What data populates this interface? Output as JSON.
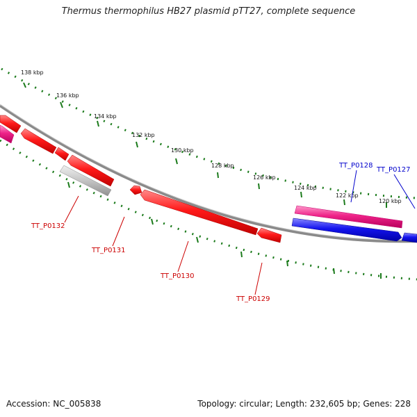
{
  "title": "Thermus thermophilus HB27 plasmid pTT27, complete sequence",
  "footer": {
    "accession": "Accession: NC_005838",
    "summary": "Topology: circular; Length: 232,605 bp; Genes: 228"
  },
  "scale": {
    "unit": "kbp",
    "tick_labels": [
      "138 kbp",
      "136 kbp",
      "134 kbp",
      "132 kbp",
      "130 kbp",
      "128 kbp",
      "126 kbp",
      "124 kbp",
      "122 kbp",
      "120 kbp"
    ]
  },
  "genes": [
    {
      "locus": "TT_P0132",
      "color": "#cc0000"
    },
    {
      "locus": "TT_P0131",
      "color": "#cc0000"
    },
    {
      "locus": "TT_P0130",
      "color": "#cc0000"
    },
    {
      "locus": "TT_P0129",
      "color": "#cc0000"
    },
    {
      "locus": "TT_P0128",
      "color": "#0000cc"
    },
    {
      "locus": "TT_P0127",
      "color": "#0000cc"
    }
  ],
  "colors": {
    "backbone": "#7a7a7a",
    "ticks": "#1a7a1a",
    "cds_red": "#ee1111",
    "cds_blue": "#1111dd",
    "cds_pink": "#ee2288",
    "cds_grey": "#b8b8b8"
  }
}
